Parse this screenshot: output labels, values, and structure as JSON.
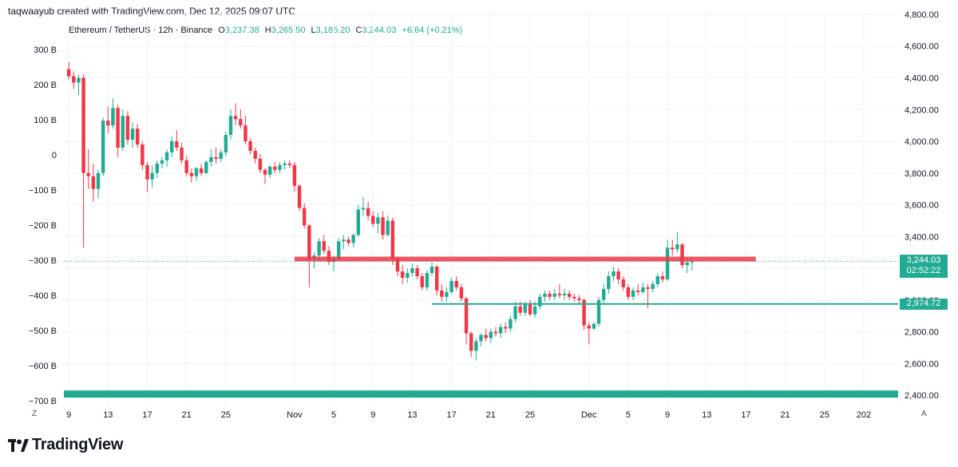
{
  "header": {
    "creator": "taqwaayub created with TradingView.com, Dec 12, 2025 09:07 UTC",
    "symbol": "Ethereum / TetherUS · 12h · Binance",
    "o_label": "O",
    "o_value": "3,237.38",
    "h_label": "H",
    "h_value": "3,265.50",
    "l_label": "L",
    "l_value": "3,185.20",
    "c_label": "C",
    "c_value": "3,244.03",
    "change": "+6.64 (+0.21%)"
  },
  "branding": {
    "logo_text": "TradingView",
    "logo_icon": "tradingview-logo-icon"
  },
  "corners": {
    "bottom_left": "Z",
    "bottom_right": "A"
  },
  "colors": {
    "up": "#22ab94",
    "down": "#f23645",
    "resistance": "#f23645",
    "support": "#22ab94",
    "zone": "#22ab94"
  },
  "chart_data": {
    "type": "candlestick",
    "title": "Ethereum / TetherUS · 12h · Binance",
    "interval": "12h",
    "right_axis": {
      "ticks": [
        2400,
        2600,
        2800,
        3000,
        3200,
        3400,
        3600,
        3800,
        4000,
        4200,
        4400,
        4600,
        4800
      ],
      "tick_labels": [
        "2,400.00",
        "2,600.00",
        "2,800.00",
        "3,000.00",
        "3,200.00",
        "3,400.00",
        "3,600.00",
        "3,800.00",
        "4,000.00",
        "4,200.00",
        "4,400.00",
        "4,600.00",
        "4,800.00"
      ],
      "range": [
        2335,
        4815
      ]
    },
    "left_axis": {
      "tick_labels": [
        "300 B",
        "200 B",
        "100 B",
        "0",
        "−100 B",
        "−200 B",
        "−300 B",
        "−400 B",
        "−500 B",
        "−600 B",
        "−700 B"
      ],
      "ticks": [
        300,
        200,
        100,
        0,
        -100,
        -200,
        -300,
        -400,
        -500,
        -600,
        -700
      ]
    },
    "x_axis": {
      "labels": [
        "9",
        "13",
        "17",
        "21",
        "25",
        "Nov",
        "5",
        "9",
        "13",
        "17",
        "21",
        "25",
        "Dec",
        "5",
        "9",
        "13",
        "17",
        "21",
        "25",
        "202"
      ],
      "label_positions_day": [
        9,
        13,
        17,
        21,
        25,
        32,
        36,
        40,
        44,
        48,
        52,
        56,
        62,
        66,
        70,
        74,
        78,
        82,
        86,
        90
      ],
      "range_day": [
        8.5,
        93.5
      ],
      "note": "day 1 = Oct 1 2025; 32 = Nov 1; 62 = Dec 1"
    },
    "candles": [
      {
        "t": 9.0,
        "o": 4455,
        "h": 4500,
        "l": 4390,
        "c": 4410
      },
      {
        "t": 9.5,
        "o": 4410,
        "h": 4440,
        "l": 4330,
        "c": 4370
      },
      {
        "t": 10.0,
        "o": 4370,
        "h": 4420,
        "l": 4290,
        "c": 4400
      },
      {
        "t": 10.5,
        "o": 4400,
        "h": 4420,
        "l": 3330,
        "c": 3800
      },
      {
        "t": 11.0,
        "o": 3800,
        "h": 3950,
        "l": 3700,
        "c": 3780
      },
      {
        "t": 11.5,
        "o": 3780,
        "h": 3860,
        "l": 3620,
        "c": 3700
      },
      {
        "t": 12.0,
        "o": 3700,
        "h": 3820,
        "l": 3640,
        "c": 3800
      },
      {
        "t": 12.5,
        "o": 3800,
        "h": 4150,
        "l": 3780,
        "c": 4130
      },
      {
        "t": 13.0,
        "o": 4130,
        "h": 4220,
        "l": 4050,
        "c": 4100
      },
      {
        "t": 13.5,
        "o": 4100,
        "h": 4270,
        "l": 4080,
        "c": 4210
      },
      {
        "t": 14.0,
        "o": 4210,
        "h": 4230,
        "l": 3900,
        "c": 3960
      },
      {
        "t": 14.5,
        "o": 3960,
        "h": 4200,
        "l": 3940,
        "c": 4160
      },
      {
        "t": 15.0,
        "o": 4160,
        "h": 4190,
        "l": 3980,
        "c": 4010
      },
      {
        "t": 15.5,
        "o": 4010,
        "h": 4120,
        "l": 3960,
        "c": 4080
      },
      {
        "t": 16.0,
        "o": 4080,
        "h": 4110,
        "l": 3960,
        "c": 3980
      },
      {
        "t": 16.5,
        "o": 3980,
        "h": 4000,
        "l": 3820,
        "c": 3850
      },
      {
        "t": 17.0,
        "o": 3850,
        "h": 3870,
        "l": 3680,
        "c": 3760
      },
      {
        "t": 17.5,
        "o": 3760,
        "h": 3850,
        "l": 3710,
        "c": 3800
      },
      {
        "t": 18.0,
        "o": 3800,
        "h": 3880,
        "l": 3770,
        "c": 3860
      },
      {
        "t": 18.5,
        "o": 3860,
        "h": 3900,
        "l": 3830,
        "c": 3880
      },
      {
        "t": 19.0,
        "o": 3880,
        "h": 3950,
        "l": 3840,
        "c": 3930
      },
      {
        "t": 19.5,
        "o": 3930,
        "h": 4030,
        "l": 3900,
        "c": 4000
      },
      {
        "t": 20.0,
        "o": 4000,
        "h": 4070,
        "l": 3940,
        "c": 3960
      },
      {
        "t": 20.5,
        "o": 3960,
        "h": 3990,
        "l": 3860,
        "c": 3880
      },
      {
        "t": 21.0,
        "o": 3880,
        "h": 3910,
        "l": 3780,
        "c": 3800
      },
      {
        "t": 21.5,
        "o": 3800,
        "h": 3830,
        "l": 3740,
        "c": 3780
      },
      {
        "t": 22.0,
        "o": 3780,
        "h": 3840,
        "l": 3750,
        "c": 3830
      },
      {
        "t": 22.5,
        "o": 3830,
        "h": 3860,
        "l": 3780,
        "c": 3800
      },
      {
        "t": 23.0,
        "o": 3800,
        "h": 3880,
        "l": 3790,
        "c": 3870
      },
      {
        "t": 23.5,
        "o": 3870,
        "h": 3950,
        "l": 3840,
        "c": 3900
      },
      {
        "t": 24.0,
        "o": 3900,
        "h": 3960,
        "l": 3860,
        "c": 3890
      },
      {
        "t": 24.5,
        "o": 3890,
        "h": 3950,
        "l": 3870,
        "c": 3930
      },
      {
        "t": 25.0,
        "o": 3930,
        "h": 4060,
        "l": 3910,
        "c": 4040
      },
      {
        "t": 25.5,
        "o": 4040,
        "h": 4200,
        "l": 4010,
        "c": 4160
      },
      {
        "t": 26.0,
        "o": 4160,
        "h": 4240,
        "l": 4100,
        "c": 4140
      },
      {
        "t": 26.5,
        "o": 4140,
        "h": 4200,
        "l": 4080,
        "c": 4100
      },
      {
        "t": 27.0,
        "o": 4100,
        "h": 4160,
        "l": 3980,
        "c": 4000
      },
      {
        "t": 27.5,
        "o": 4000,
        "h": 4020,
        "l": 3920,
        "c": 3940
      },
      {
        "t": 28.0,
        "o": 3940,
        "h": 3960,
        "l": 3860,
        "c": 3890
      },
      {
        "t": 28.5,
        "o": 3890,
        "h": 3920,
        "l": 3800,
        "c": 3820
      },
      {
        "t": 29.0,
        "o": 3820,
        "h": 3830,
        "l": 3730,
        "c": 3790
      },
      {
        "t": 29.5,
        "o": 3790,
        "h": 3850,
        "l": 3770,
        "c": 3840
      },
      {
        "t": 30.0,
        "o": 3840,
        "h": 3870,
        "l": 3800,
        "c": 3820
      },
      {
        "t": 30.5,
        "o": 3820,
        "h": 3870,
        "l": 3800,
        "c": 3850
      },
      {
        "t": 31.0,
        "o": 3850,
        "h": 3880,
        "l": 3820,
        "c": 3860
      },
      {
        "t": 31.5,
        "o": 3860,
        "h": 3880,
        "l": 3830,
        "c": 3850
      },
      {
        "t": 32.0,
        "o": 3850,
        "h": 3870,
        "l": 3680,
        "c": 3720
      },
      {
        "t": 32.5,
        "o": 3720,
        "h": 3730,
        "l": 3560,
        "c": 3580
      },
      {
        "t": 33.0,
        "o": 3580,
        "h": 3610,
        "l": 3450,
        "c": 3470
      },
      {
        "t": 33.5,
        "o": 3470,
        "h": 3480,
        "l": 3080,
        "c": 3260
      },
      {
        "t": 34.0,
        "o": 3260,
        "h": 3300,
        "l": 3200,
        "c": 3280
      },
      {
        "t": 34.5,
        "o": 3280,
        "h": 3390,
        "l": 3250,
        "c": 3370
      },
      {
        "t": 35.0,
        "o": 3370,
        "h": 3410,
        "l": 3290,
        "c": 3310
      },
      {
        "t": 35.5,
        "o": 3310,
        "h": 3340,
        "l": 3220,
        "c": 3240
      },
      {
        "t": 36.0,
        "o": 3240,
        "h": 3280,
        "l": 3180,
        "c": 3260
      },
      {
        "t": 36.5,
        "o": 3260,
        "h": 3390,
        "l": 3250,
        "c": 3370
      },
      {
        "t": 37.0,
        "o": 3370,
        "h": 3410,
        "l": 3320,
        "c": 3380
      },
      {
        "t": 37.5,
        "o": 3380,
        "h": 3400,
        "l": 3340,
        "c": 3360
      },
      {
        "t": 38.0,
        "o": 3360,
        "h": 3420,
        "l": 3330,
        "c": 3410
      },
      {
        "t": 38.5,
        "o": 3410,
        "h": 3600,
        "l": 3400,
        "c": 3570
      },
      {
        "t": 39.0,
        "o": 3570,
        "h": 3650,
        "l": 3530,
        "c": 3580
      },
      {
        "t": 39.5,
        "o": 3580,
        "h": 3620,
        "l": 3500,
        "c": 3530
      },
      {
        "t": 40.0,
        "o": 3530,
        "h": 3560,
        "l": 3460,
        "c": 3480
      },
      {
        "t": 40.5,
        "o": 3480,
        "h": 3550,
        "l": 3420,
        "c": 3520
      },
      {
        "t": 41.0,
        "o": 3520,
        "h": 3560,
        "l": 3380,
        "c": 3410
      },
      {
        "t": 41.5,
        "o": 3410,
        "h": 3530,
        "l": 3400,
        "c": 3500
      },
      {
        "t": 42.0,
        "o": 3500,
        "h": 3520,
        "l": 3220,
        "c": 3260
      },
      {
        "t": 42.5,
        "o": 3260,
        "h": 3270,
        "l": 3150,
        "c": 3180
      },
      {
        "t": 43.0,
        "o": 3180,
        "h": 3220,
        "l": 3100,
        "c": 3140
      },
      {
        "t": 43.5,
        "o": 3140,
        "h": 3200,
        "l": 3110,
        "c": 3170
      },
      {
        "t": 44.0,
        "o": 3170,
        "h": 3230,
        "l": 3150,
        "c": 3200
      },
      {
        "t": 44.5,
        "o": 3200,
        "h": 3220,
        "l": 3130,
        "c": 3150
      },
      {
        "t": 45.0,
        "o": 3150,
        "h": 3170,
        "l": 3060,
        "c": 3080
      },
      {
        "t": 45.5,
        "o": 3080,
        "h": 3190,
        "l": 3060,
        "c": 3170
      },
      {
        "t": 46.0,
        "o": 3170,
        "h": 3240,
        "l": 3150,
        "c": 3210
      },
      {
        "t": 46.5,
        "o": 3210,
        "h": 3220,
        "l": 3030,
        "c": 3060
      },
      {
        "t": 47.0,
        "o": 3060,
        "h": 3100,
        "l": 2990,
        "c": 3020
      },
      {
        "t": 47.5,
        "o": 3020,
        "h": 3080,
        "l": 2990,
        "c": 3050
      },
      {
        "t": 48.0,
        "o": 3050,
        "h": 3140,
        "l": 3040,
        "c": 3120
      },
      {
        "t": 48.5,
        "o": 3120,
        "h": 3150,
        "l": 3060,
        "c": 3080
      },
      {
        "t": 49.0,
        "o": 3080,
        "h": 3100,
        "l": 2990,
        "c": 3010
      },
      {
        "t": 49.5,
        "o": 3010,
        "h": 3020,
        "l": 2720,
        "c": 2790
      },
      {
        "t": 50.0,
        "o": 2790,
        "h": 2800,
        "l": 2640,
        "c": 2680
      },
      {
        "t": 50.5,
        "o": 2680,
        "h": 2760,
        "l": 2620,
        "c": 2740
      },
      {
        "t": 51.0,
        "o": 2740,
        "h": 2790,
        "l": 2710,
        "c": 2780
      },
      {
        "t": 51.5,
        "o": 2780,
        "h": 2820,
        "l": 2740,
        "c": 2760
      },
      {
        "t": 52.0,
        "o": 2760,
        "h": 2820,
        "l": 2730,
        "c": 2800
      },
      {
        "t": 52.5,
        "o": 2800,
        "h": 2830,
        "l": 2770,
        "c": 2790
      },
      {
        "t": 53.0,
        "o": 2790,
        "h": 2850,
        "l": 2760,
        "c": 2830
      },
      {
        "t": 53.5,
        "o": 2830,
        "h": 2860,
        "l": 2790,
        "c": 2820
      },
      {
        "t": 54.0,
        "o": 2820,
        "h": 2900,
        "l": 2800,
        "c": 2880
      },
      {
        "t": 54.5,
        "o": 2880,
        "h": 2990,
        "l": 2860,
        "c": 2960
      },
      {
        "t": 55.0,
        "o": 2960,
        "h": 2990,
        "l": 2900,
        "c": 2920
      },
      {
        "t": 55.5,
        "o": 2920,
        "h": 2990,
        "l": 2900,
        "c": 2970
      },
      {
        "t": 56.0,
        "o": 2970,
        "h": 3000,
        "l": 2900,
        "c": 2910
      },
      {
        "t": 56.5,
        "o": 2910,
        "h": 2990,
        "l": 2890,
        "c": 2960
      },
      {
        "t": 57.0,
        "o": 2960,
        "h": 3040,
        "l": 2940,
        "c": 3020
      },
      {
        "t": 57.5,
        "o": 3020,
        "h": 3060,
        "l": 2990,
        "c": 3040
      },
      {
        "t": 58.0,
        "o": 3040,
        "h": 3060,
        "l": 3000,
        "c": 3020
      },
      {
        "t": 58.5,
        "o": 3020,
        "h": 3070,
        "l": 3000,
        "c": 3040
      },
      {
        "t": 59.0,
        "o": 3040,
        "h": 3100,
        "l": 3010,
        "c": 3030
      },
      {
        "t": 59.5,
        "o": 3030,
        "h": 3070,
        "l": 3000,
        "c": 3040
      },
      {
        "t": 60.0,
        "o": 3040,
        "h": 3060,
        "l": 3000,
        "c": 3020
      },
      {
        "t": 60.5,
        "o": 3020,
        "h": 3040,
        "l": 2990,
        "c": 3010
      },
      {
        "t": 61.0,
        "o": 3010,
        "h": 3030,
        "l": 2980,
        "c": 3000
      },
      {
        "t": 61.5,
        "o": 3000,
        "h": 3010,
        "l": 2810,
        "c": 2840
      },
      {
        "t": 62.0,
        "o": 2840,
        "h": 2860,
        "l": 2720,
        "c": 2820
      },
      {
        "t": 62.5,
        "o": 2820,
        "h": 2860,
        "l": 2810,
        "c": 2850
      },
      {
        "t": 63.0,
        "o": 2850,
        "h": 3020,
        "l": 2830,
        "c": 3000
      },
      {
        "t": 63.5,
        "o": 3000,
        "h": 3100,
        "l": 2980,
        "c": 3070
      },
      {
        "t": 64.0,
        "o": 3070,
        "h": 3180,
        "l": 3040,
        "c": 3150
      },
      {
        "t": 64.5,
        "o": 3150,
        "h": 3210,
        "l": 3120,
        "c": 3180
      },
      {
        "t": 65.0,
        "o": 3180,
        "h": 3200,
        "l": 3100,
        "c": 3130
      },
      {
        "t": 65.5,
        "o": 3130,
        "h": 3150,
        "l": 3060,
        "c": 3080
      },
      {
        "t": 66.0,
        "o": 3080,
        "h": 3100,
        "l": 3000,
        "c": 3020
      },
      {
        "t": 66.5,
        "o": 3020,
        "h": 3080,
        "l": 3000,
        "c": 3060
      },
      {
        "t": 67.0,
        "o": 3060,
        "h": 3100,
        "l": 3030,
        "c": 3050
      },
      {
        "t": 67.5,
        "o": 3050,
        "h": 3110,
        "l": 3040,
        "c": 3080
      },
      {
        "t": 68.0,
        "o": 3080,
        "h": 3100,
        "l": 2950,
        "c": 3070
      },
      {
        "t": 68.5,
        "o": 3070,
        "h": 3120,
        "l": 3050,
        "c": 3100
      },
      {
        "t": 69.0,
        "o": 3100,
        "h": 3170,
        "l": 3080,
        "c": 3150
      },
      {
        "t": 69.5,
        "o": 3150,
        "h": 3180,
        "l": 3110,
        "c": 3130
      },
      {
        "t": 70.0,
        "o": 3130,
        "h": 3380,
        "l": 3120,
        "c": 3330
      },
      {
        "t": 70.5,
        "o": 3330,
        "h": 3380,
        "l": 3280,
        "c": 3320
      },
      {
        "t": 71.0,
        "o": 3320,
        "h": 3430,
        "l": 3300,
        "c": 3350
      },
      {
        "t": 71.5,
        "o": 3350,
        "h": 3360,
        "l": 3200,
        "c": 3220
      },
      {
        "t": 72.0,
        "o": 3220,
        "h": 3270,
        "l": 3170,
        "c": 3237
      },
      {
        "t": 72.5,
        "o": 3237,
        "h": 3265,
        "l": 3185,
        "c": 3244
      }
    ],
    "levels": [
      {
        "name": "resistance",
        "price": 3258,
        "from_day": 32,
        "to_day": 79,
        "label": ""
      },
      {
        "name": "support",
        "price": 2975,
        "from_day": 46,
        "to_day": 93.5,
        "label": "2,974.72"
      },
      {
        "name": "demand-zone",
        "price_low": 2385,
        "price_high": 2430,
        "from_day": 8.5,
        "to_day": 93.5
      }
    ],
    "last_price": {
      "value": 3244.03,
      "label": "3,244.03",
      "countdown": "02:52:22"
    },
    "support_tag": {
      "label": "2,974.72"
    }
  }
}
